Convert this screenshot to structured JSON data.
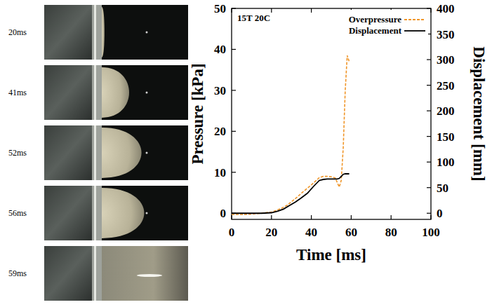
{
  "chart_data": {
    "type": "line",
    "annotation": "15T 20C",
    "xlabel": "Time [ms]",
    "ylabel": "Pressure [kPa]",
    "y2label": "Displacement [mm]",
    "xlim": [
      0,
      100
    ],
    "xticks": [
      0,
      20,
      40,
      60,
      80,
      100
    ],
    "ylim": [
      -1.5,
      50
    ],
    "yticks": [
      0,
      10,
      20,
      30,
      40,
      50
    ],
    "y2lim": [
      -12,
      400
    ],
    "y2ticks": [
      0,
      50,
      100,
      150,
      200,
      250,
      300,
      350,
      400
    ],
    "grid": false,
    "legend": "top-right",
    "series": [
      {
        "name": "Overpressure",
        "color": "#f0962a",
        "line_style": "dashed",
        "axis": "y",
        "x": [
          0,
          5,
          10,
          15,
          20,
          22,
          25,
          28,
          30,
          33,
          36,
          39,
          42,
          44,
          46,
          48,
          50,
          52,
          53,
          54,
          55,
          56,
          57,
          58,
          59
        ],
        "values": [
          -0.3,
          -0.3,
          -0.2,
          0,
          0.3,
          0.6,
          1.2,
          2,
          2.8,
          4,
          5.3,
          6.5,
          7.8,
          8.7,
          9,
          9,
          8.9,
          8.6,
          7.5,
          6.4,
          8,
          16,
          30,
          38.5,
          37
        ]
      },
      {
        "name": "Displacement",
        "color": "#000000",
        "line_style": "solid",
        "axis": "y2",
        "x": [
          0,
          5,
          10,
          15,
          20,
          23,
          26,
          29,
          32,
          35,
          38,
          41,
          44,
          46,
          48,
          50,
          52,
          53,
          54,
          55,
          56,
          57,
          58,
          59
        ],
        "values": [
          0,
          0,
          0,
          0,
          1,
          4,
          8,
          15,
          22,
          30,
          39,
          52,
          64,
          66,
          67,
          67,
          67,
          67,
          68,
          72,
          76,
          77,
          77,
          77
        ]
      }
    ]
  },
  "frames": {
    "labels": [
      "20ms",
      "41ms",
      "52ms",
      "56ms",
      "59ms"
    ]
  }
}
